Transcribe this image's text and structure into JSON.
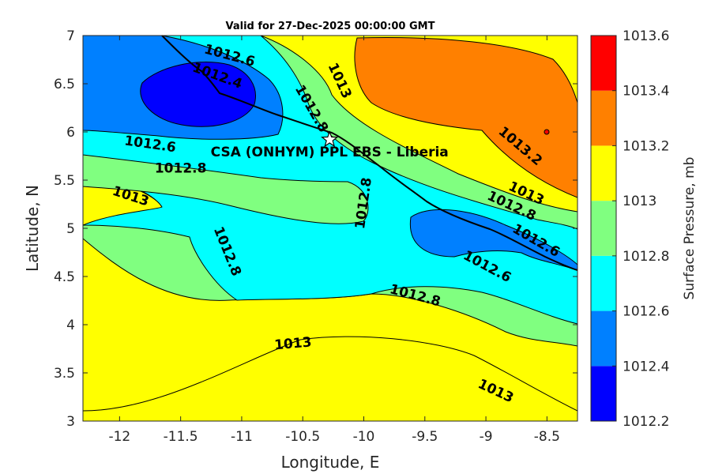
{
  "chart_data": {
    "type": "heatmap",
    "title": "Valid for 27-Dec-2025 00:00:00 GMT",
    "xlabel": "Longitude, E",
    "ylabel": "Latitude, N",
    "xlim": [
      -12.3,
      -8.25
    ],
    "ylim": [
      3,
      7
    ],
    "x_ticks": [
      -12,
      -11.5,
      -11,
      -10.5,
      -10,
      -9.5,
      -9,
      -8.5
    ],
    "y_ticks": [
      3,
      3.5,
      4,
      4.5,
      5,
      5.5,
      6,
      6.5,
      7
    ],
    "colorbar": {
      "label": "Surface Pressure, mb",
      "levels": [
        1012.2,
        1012.4,
        1012.6,
        1012.8,
        1013,
        1013.2,
        1013.4,
        1013.6
      ],
      "colors": [
        "#0000ff",
        "#0080ff",
        "#00ffff",
        "#80ff80",
        "#ffff00",
        "#ff8000",
        "#ff0000",
        "#800000"
      ]
    },
    "regions": [
      {
        "bin": "1012.8-1013",
        "color": "#80ff80"
      },
      {
        "bin": "1013-1013.2",
        "color": "#ffff00"
      },
      {
        "bin": "1012.6-1012.8",
        "color": "#00ffff"
      },
      {
        "bin": "1012.4-1012.6",
        "color": "#0080ff"
      },
      {
        "bin": "1012.2-1012.4",
        "color": "#0000ff"
      },
      {
        "bin": "1013.2-1013.4",
        "color": "#ff8000"
      }
    ],
    "contour_labels": [
      {
        "text": "1012.6",
        "lon": -11.1,
        "lat": 6.79,
        "angle": 15
      },
      {
        "text": "1012.4",
        "lon": -11.2,
        "lat": 6.58,
        "angle": 20
      },
      {
        "text": "1013",
        "lon": -10.2,
        "lat": 6.53,
        "angle": 65
      },
      {
        "text": "1012.8",
        "lon": -10.43,
        "lat": 6.24,
        "angle": 60
      },
      {
        "text": "1012.6",
        "lon": -11.75,
        "lat": 5.87,
        "angle": 8
      },
      {
        "text": "1012.8",
        "lon": -11.5,
        "lat": 5.62,
        "angle": 0
      },
      {
        "text": "1013",
        "lon": -11.91,
        "lat": 5.33,
        "angle": 18
      },
      {
        "text": "1012.8",
        "lon": -10.0,
        "lat": 5.26,
        "angle": -82
      },
      {
        "text": "1012.8",
        "lon": -11.12,
        "lat": 4.76,
        "angle": 68
      },
      {
        "text": "1013.2",
        "lon": -8.72,
        "lat": 5.85,
        "angle": 40
      },
      {
        "text": "1013",
        "lon": -8.67,
        "lat": 5.36,
        "angle": 25
      },
      {
        "text": "1012.8",
        "lon": -8.79,
        "lat": 5.23,
        "angle": 25
      },
      {
        "text": "1012.6",
        "lon": -8.59,
        "lat": 4.87,
        "angle": 30
      },
      {
        "text": "1012.6",
        "lon": -8.99,
        "lat": 4.6,
        "angle": 28
      },
      {
        "text": "1012.8",
        "lon": -9.58,
        "lat": 4.3,
        "angle": 15
      },
      {
        "text": "1013",
        "lon": -10.58,
        "lat": 3.8,
        "angle": -5
      },
      {
        "text": "1013",
        "lon": -8.92,
        "lat": 3.31,
        "angle": 25
      }
    ],
    "site": {
      "name": "CSA (ONHYM) PPL EBS  - Liberia",
      "lon": -10.28,
      "lat": 5.92,
      "marker": "star"
    }
  }
}
